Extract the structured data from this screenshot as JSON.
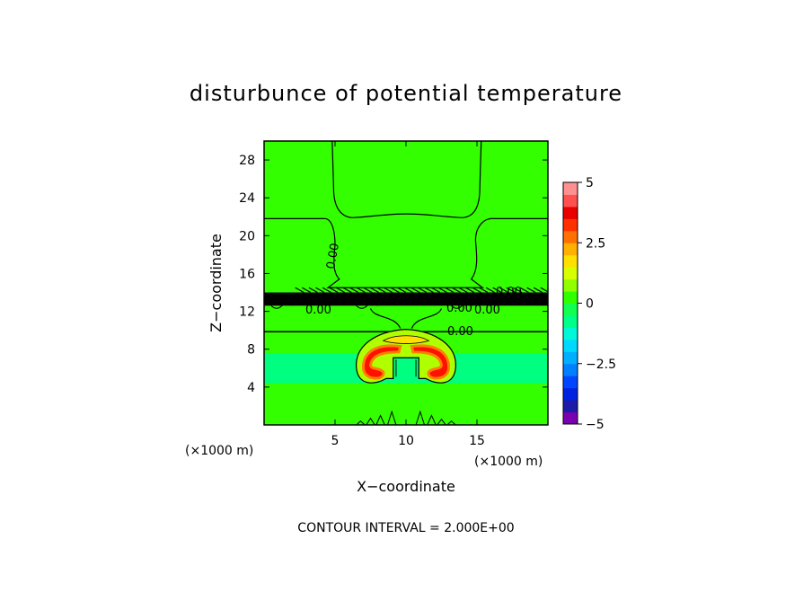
{
  "chart_data": {
    "type": "contour",
    "title": "disturbunce of potential temperature",
    "xlabel": "X−coordinate",
    "ylabel": "Z−coordinate",
    "x_unit": "(×1000 m)",
    "y_unit": "(×1000 m)",
    "xlim": [
      0,
      20
    ],
    "ylim": [
      0,
      30
    ],
    "xticks": [
      "5",
      "10",
      "15"
    ],
    "yticks": [
      "4",
      "8",
      "12",
      "16",
      "20",
      "24",
      "28"
    ],
    "contour_interval_text": "CONTOUR INTERVAL = 2.000E+00",
    "contour_labels": [
      "0.00",
      "0.00",
      "0.00",
      "0.00",
      "0.00",
      "0.00"
    ],
    "colorbar": {
      "range": [
        -5,
        5
      ],
      "ticks": [
        "5",
        "2.5",
        "0",
        "−2.5",
        "−5"
      ],
      "colors": [
        "#7a00b0",
        "#1b1ba8",
        "#0022e0",
        "#0046ff",
        "#0080ff",
        "#00b0ff",
        "#00d8ff",
        "#00f8d8",
        "#00ff88",
        "#10ff50",
        "#30ff00",
        "#90ff00",
        "#d8ff00",
        "#ffe000",
        "#ffb000",
        "#ff7000",
        "#ff3000",
        "#e80000",
        "#ff5050",
        "#ff9090"
      ]
    },
    "field": {
      "background_color": "#33ff00",
      "upper_band_color": "#2ffd10",
      "cold_layer_color": "#00ff80",
      "cold_layer_z": [
        4.4,
        7.6
      ],
      "tropopause_z": [
        12.6,
        14.0
      ],
      "thermal_center_x": 10,
      "thermal_center_z": 6.5,
      "warm_core_colors": [
        "#ff1000",
        "#ff8000",
        "#ffe000",
        "#b0ff00"
      ]
    }
  }
}
